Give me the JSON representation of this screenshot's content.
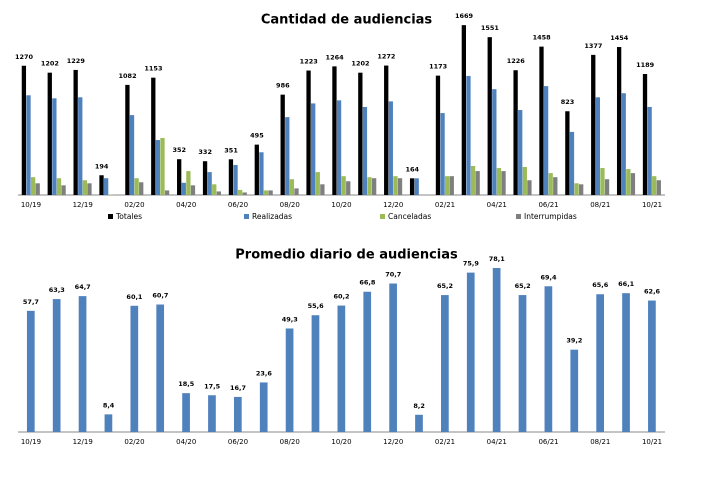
{
  "chart_data": [
    {
      "type": "bar",
      "title": "Cantidad de audiencias",
      "categories": [
        "10/19",
        null,
        "12/19",
        null,
        "02/20",
        null,
        "04/20",
        null,
        "06/20",
        null,
        "08/20",
        null,
        "10/20",
        null,
        "12/20",
        null,
        "02/21",
        null,
        "04/21",
        null,
        "06/21",
        null,
        "08/21",
        null,
        "10/21"
      ],
      "series": [
        {
          "name": "Totales",
          "color": "#000000",
          "data_labels": true,
          "values": [
            1270,
            1202,
            1229,
            194,
            1082,
            1153,
            352,
            332,
            351,
            495,
            986,
            1223,
            1264,
            1202,
            1272,
            164,
            1173,
            1669,
            1551,
            1226,
            1458,
            823,
            1377,
            1454,
            1189
          ]
        },
        {
          "name": "Realizadas",
          "color": "#4f81bd",
          "values": [
            980,
            950,
            960,
            165,
            785,
            540,
            120,
            225,
            295,
            420,
            765,
            900,
            930,
            865,
            920,
            164,
            805,
            1170,
            1040,
            835,
            1070,
            620,
            960,
            1000,
            865
          ]
        },
        {
          "name": "Canceladas",
          "color": "#9bbb59",
          "values": [
            175,
            165,
            145,
            5,
            165,
            560,
            235,
            105,
            50,
            45,
            155,
            225,
            185,
            175,
            185,
            0,
            185,
            285,
            265,
            275,
            215,
            115,
            265,
            255,
            185
          ]
        },
        {
          "name": "Interrumpidas",
          "color": "#7f7f7f",
          "values": [
            115,
            95,
            115,
            0,
            125,
            45,
            95,
            35,
            25,
            45,
            65,
            105,
            135,
            165,
            165,
            0,
            185,
            235,
            235,
            145,
            175,
            105,
            155,
            215,
            145
          ]
        }
      ],
      "ylim": [
        0,
        1700
      ],
      "legend": "bottom"
    },
    {
      "type": "bar",
      "title": "Promedio diario de audiencias",
      "categories": [
        "10/19",
        null,
        "12/19",
        null,
        "02/20",
        null,
        "04/20",
        null,
        "06/20",
        null,
        "08/20",
        null,
        "10/20",
        null,
        "12/20",
        null,
        "02/21",
        null,
        "04/21",
        null,
        "06/21",
        null,
        "08/21",
        null,
        "10/21"
      ],
      "series": [
        {
          "name": "Promedio diario",
          "color": "#4f81bd",
          "data_labels": true,
          "values": [
            57.7,
            63.3,
            64.7,
            8.4,
            60.1,
            60.7,
            18.5,
            17.5,
            16.7,
            23.6,
            49.3,
            55.6,
            60.2,
            66.8,
            70.7,
            8.2,
            65.2,
            75.9,
            78.1,
            65.2,
            69.4,
            39.2,
            65.6,
            66.1,
            62.6
          ],
          "value_labels": [
            "57,7",
            "63,3",
            "64,7",
            "8,4",
            "60,1",
            "60,7",
            "18,5",
            "17,5",
            "16,7",
            "23,6",
            "49,3",
            "55,6",
            "60,2",
            "66,8",
            "70,7",
            "8,2",
            "65,2",
            "75,9",
            "78,1",
            "65,2",
            "69,4",
            "39,2",
            "65,6",
            "66,1",
            "62,6"
          ]
        }
      ],
      "ylim": [
        0,
        80
      ],
      "legend": "none"
    }
  ]
}
